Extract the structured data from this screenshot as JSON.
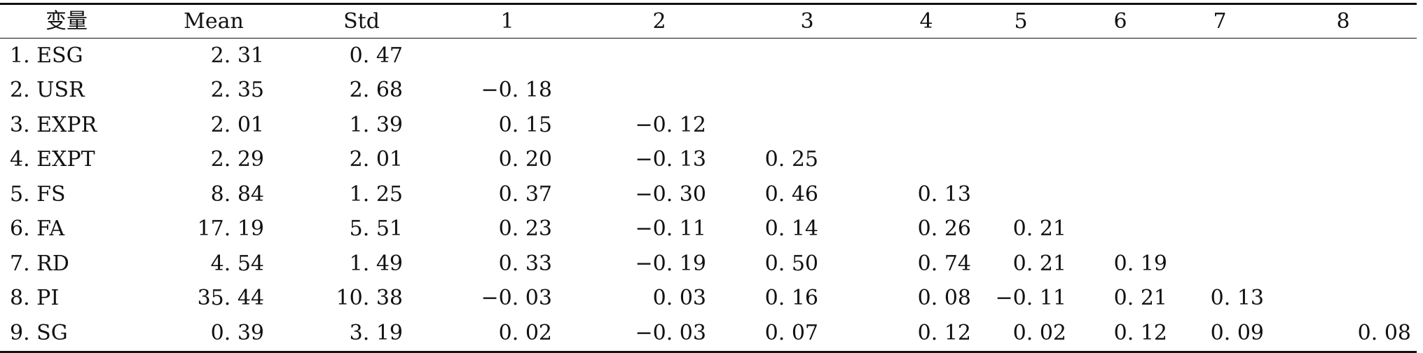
{
  "table": {
    "headers": [
      "变量",
      "Mean",
      "Std",
      "1",
      "2",
      "3",
      "4",
      "5",
      "6",
      "7",
      "8"
    ],
    "rows": [
      {
        "label": "1. ESG",
        "mean": "2. 31",
        "std": "0. 47",
        "c1": "",
        "c2": "",
        "c3": "",
        "c4": "",
        "c5": "",
        "c6": "",
        "c7": "",
        "c8": ""
      },
      {
        "label": "2. USR",
        "mean": "2. 35",
        "std": "2. 68",
        "c1": "−0. 18",
        "c2": "",
        "c3": "",
        "c4": "",
        "c5": "",
        "c6": "",
        "c7": "",
        "c8": ""
      },
      {
        "label": "3. EXPR",
        "mean": "2. 01",
        "std": "1. 39",
        "c1": "0. 15",
        "c2": "−0. 12",
        "c3": "",
        "c4": "",
        "c5": "",
        "c6": "",
        "c7": "",
        "c8": ""
      },
      {
        "label": "4. EXPT",
        "mean": "2. 29",
        "std": "2. 01",
        "c1": "0. 20",
        "c2": "−0. 13",
        "c3": "0. 25",
        "c4": "",
        "c5": "",
        "c6": "",
        "c7": "",
        "c8": ""
      },
      {
        "label": "5. FS",
        "mean": "8. 84",
        "std": "1. 25",
        "c1": "0. 37",
        "c2": "−0. 30",
        "c3": "0. 46",
        "c4": "0. 13",
        "c5": "",
        "c6": "",
        "c7": "",
        "c8": ""
      },
      {
        "label": "6. FA",
        "mean": "17. 19",
        "std": "5. 51",
        "c1": "0. 23",
        "c2": "−0. 11",
        "c3": "0. 14",
        "c4": "0. 26",
        "c5": "0. 21",
        "c6": "",
        "c7": "",
        "c8": ""
      },
      {
        "label": "7. RD",
        "mean": "4. 54",
        "std": "1. 49",
        "c1": "0. 33",
        "c2": "−0. 19",
        "c3": "0. 50",
        "c4": "0. 74",
        "c5": "0. 21",
        "c6": "0. 19",
        "c7": "",
        "c8": ""
      },
      {
        "label": "8. PI",
        "mean": "35. 44",
        "std": "10. 38",
        "c1": "−0. 03",
        "c2": "0. 03",
        "c3": "0. 16",
        "c4": "0. 08",
        "c5": "−0. 11",
        "c6": "0. 21",
        "c7": "0. 13",
        "c8": ""
      },
      {
        "label": "9. SG",
        "mean": "0. 39",
        "std": "3. 19",
        "c1": "0. 02",
        "c2": "−0. 03",
        "c3": "0. 07",
        "c4": "0. 12",
        "c5": "0. 02",
        "c6": "0. 12",
        "c7": "0. 09",
        "c8": "0. 08"
      }
    ]
  }
}
